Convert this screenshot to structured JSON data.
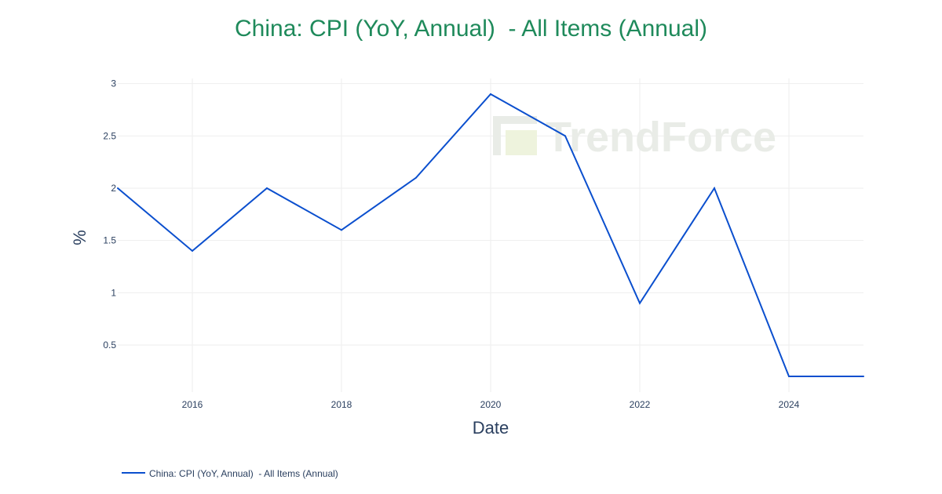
{
  "chart_data": {
    "type": "line",
    "title": "China: CPI (YoY, Annual)  - All Items (Annual)",
    "xlabel": "Date",
    "ylabel": "%",
    "x": [
      2015,
      2016,
      2017,
      2018,
      2019,
      2020,
      2021,
      2022,
      2023,
      2024,
      2025
    ],
    "x_ticks": [
      2016,
      2018,
      2020,
      2022,
      2024
    ],
    "y_ticks": [
      0.5,
      1,
      1.5,
      2,
      2.5,
      3
    ],
    "y_tick_labels": [
      "0.5",
      "1",
      "1.5",
      "2",
      "2.5",
      "3"
    ],
    "xlim": [
      2015,
      2025
    ],
    "ylim": [
      0.05,
      3.05
    ],
    "series": [
      {
        "name": "China: CPI (YoY, Annual)  - All Items (Annual)",
        "color": "#0b4fce",
        "values": [
          2.0,
          1.4,
          2.0,
          1.6,
          2.1,
          2.9,
          2.5,
          0.9,
          2.0,
          0.2,
          0.2
        ]
      }
    ],
    "grid": true,
    "legend_position": "bottom-left"
  },
  "watermark": {
    "text": "TrendForce"
  }
}
